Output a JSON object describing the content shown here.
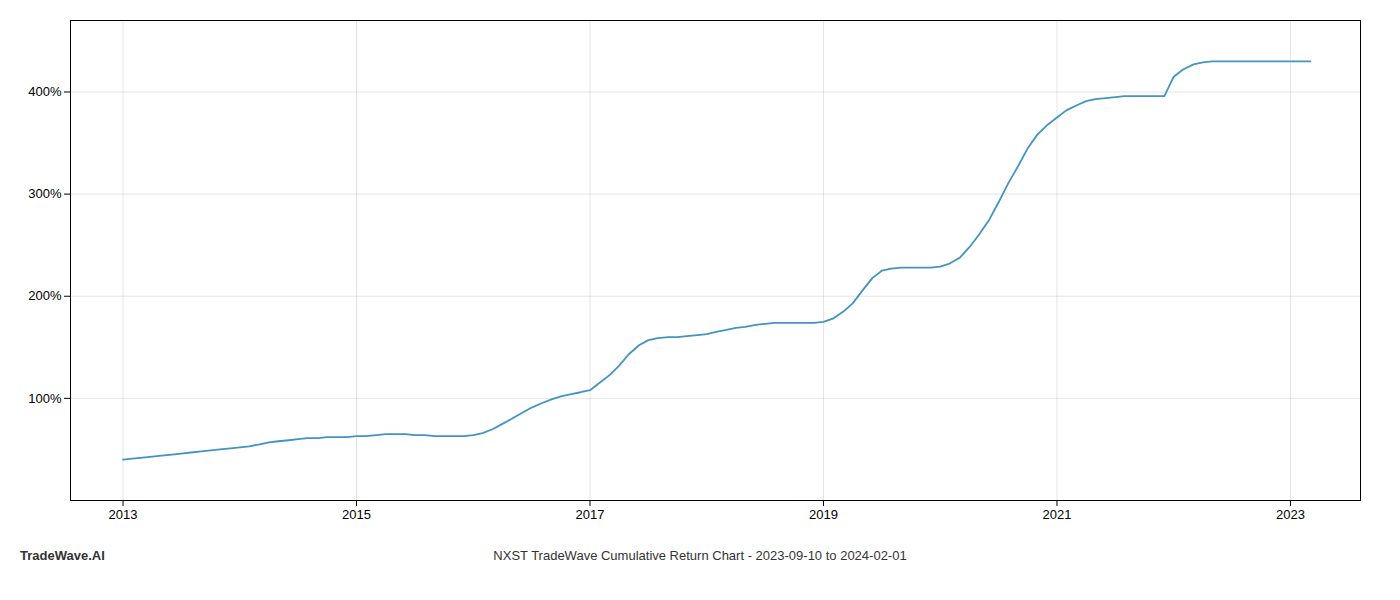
{
  "chart_data": {
    "type": "line",
    "title": "NXST TradeWave Cumulative Return Chart - 2023-09-10 to 2024-02-01",
    "annotations": [
      "TradeWave.AI"
    ],
    "color": "#4393c3",
    "x": [
      2013.0,
      2013.08,
      2013.17,
      2013.25,
      2013.33,
      2013.42,
      2013.5,
      2013.58,
      2013.67,
      2013.75,
      2013.83,
      2013.92,
      2014.0,
      2014.08,
      2014.17,
      2014.25,
      2014.33,
      2014.42,
      2014.5,
      2014.58,
      2014.67,
      2014.75,
      2014.83,
      2014.92,
      2015.0,
      2015.08,
      2015.17,
      2015.25,
      2015.33,
      2015.42,
      2015.5,
      2015.58,
      2015.67,
      2015.75,
      2015.83,
      2015.92,
      2016.0,
      2016.08,
      2016.17,
      2016.25,
      2016.33,
      2016.42,
      2016.5,
      2016.58,
      2016.67,
      2016.75,
      2016.83,
      2016.92,
      2017.0,
      2017.08,
      2017.17,
      2017.25,
      2017.33,
      2017.42,
      2017.5,
      2017.58,
      2017.67,
      2017.75,
      2017.83,
      2017.92,
      2018.0,
      2018.08,
      2018.17,
      2018.25,
      2018.33,
      2018.42,
      2018.5,
      2018.58,
      2018.67,
      2018.75,
      2018.83,
      2018.92,
      2019.0,
      2019.08,
      2019.17,
      2019.25,
      2019.33,
      2019.42,
      2019.5,
      2019.58,
      2019.67,
      2019.75,
      2019.83,
      2019.92,
      2020.0,
      2020.08,
      2020.17,
      2020.25,
      2020.33,
      2020.42,
      2020.5,
      2020.58,
      2020.67,
      2020.75,
      2020.83,
      2020.92,
      2021.0,
      2021.08,
      2021.17,
      2021.25,
      2021.33,
      2021.42,
      2021.5,
      2021.58,
      2021.67,
      2021.75,
      2021.83,
      2021.92,
      2022.0,
      2022.08,
      2022.17,
      2022.25,
      2022.33,
      2022.42,
      2022.5,
      2022.58,
      2022.67,
      2022.75,
      2022.83,
      2022.92,
      2023.0,
      2023.08,
      2023.17
    ],
    "values": [
      40,
      41,
      42,
      43,
      44,
      45,
      46,
      47,
      48,
      49,
      50,
      51,
      52,
      53,
      55,
      57,
      58,
      59,
      60,
      61,
      61,
      62,
      62,
      62,
      63,
      63,
      64,
      65,
      65,
      65,
      64,
      64,
      63,
      63,
      63,
      63,
      64,
      66,
      70,
      75,
      80,
      86,
      91,
      95,
      99,
      102,
      104,
      106,
      108,
      115,
      123,
      132,
      143,
      152,
      157,
      159,
      160,
      160,
      161,
      162,
      163,
      165,
      167,
      169,
      170,
      172,
      173,
      174,
      174,
      174,
      174,
      174,
      175,
      178,
      185,
      193,
      205,
      218,
      225,
      227,
      228,
      228,
      228,
      228,
      229,
      232,
      238,
      248,
      260,
      275,
      292,
      310,
      328,
      345,
      358,
      368,
      375,
      382,
      387,
      391,
      393,
      394,
      395,
      396,
      396,
      396,
      396,
      396,
      415,
      422,
      427,
      429,
      430,
      430,
      430,
      430,
      430,
      430,
      430,
      430,
      430,
      430,
      430
    ],
    "xlim": [
      2012.55,
      2023.6
    ],
    "xticks": [
      2013,
      2015,
      2017,
      2019,
      2021,
      2023
    ],
    "ylim": [
      0,
      470
    ],
    "yticks": [
      {
        "value": 100,
        "label": "100%"
      },
      {
        "value": 200,
        "label": "200%"
      },
      {
        "value": 300,
        "label": "300%"
      },
      {
        "value": 400,
        "label": "400%"
      }
    ],
    "grid": true
  }
}
